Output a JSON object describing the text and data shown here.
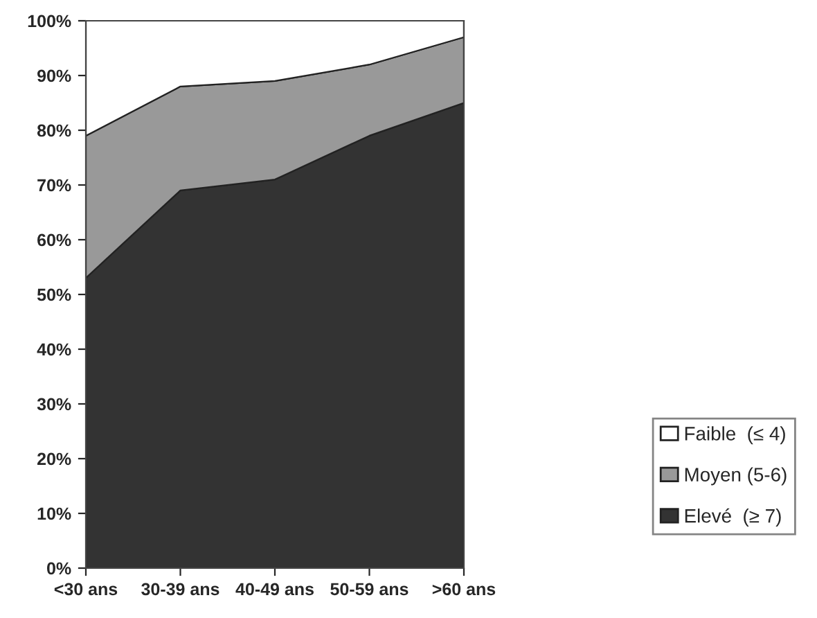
{
  "chart_data": {
    "type": "area",
    "stacked": true,
    "categories": [
      "<30 ans",
      "30-39 ans",
      "40-49 ans",
      "50-59 ans",
      ">60 ans"
    ],
    "series": [
      {
        "name": "Elevé  (≥ 7)",
        "color": "#333333",
        "values": [
          53,
          69,
          71,
          79,
          85
        ]
      },
      {
        "name": "Moyen (5-6)",
        "color": "#999999",
        "values": [
          26,
          19,
          18,
          13,
          12
        ]
      },
      {
        "name": "Faible  (≤ 4)",
        "color": "#ffffff",
        "values": [
          21,
          12,
          11,
          8,
          3
        ]
      }
    ],
    "ylim": [
      0,
      100
    ],
    "yticks": [
      {
        "value": 0,
        "label": "0%"
      },
      {
        "value": 10,
        "label": "10%"
      },
      {
        "value": 20,
        "label": "20%"
      },
      {
        "value": 30,
        "label": "30%"
      },
      {
        "value": 40,
        "label": "40%"
      },
      {
        "value": 50,
        "label": "50%"
      },
      {
        "value": 60,
        "label": "60%"
      },
      {
        "value": 70,
        "label": "70%"
      },
      {
        "value": 80,
        "label": "80%"
      },
      {
        "value": 90,
        "label": "90%"
      },
      {
        "value": 100,
        "label": "100%"
      }
    ],
    "legend": "right"
  }
}
